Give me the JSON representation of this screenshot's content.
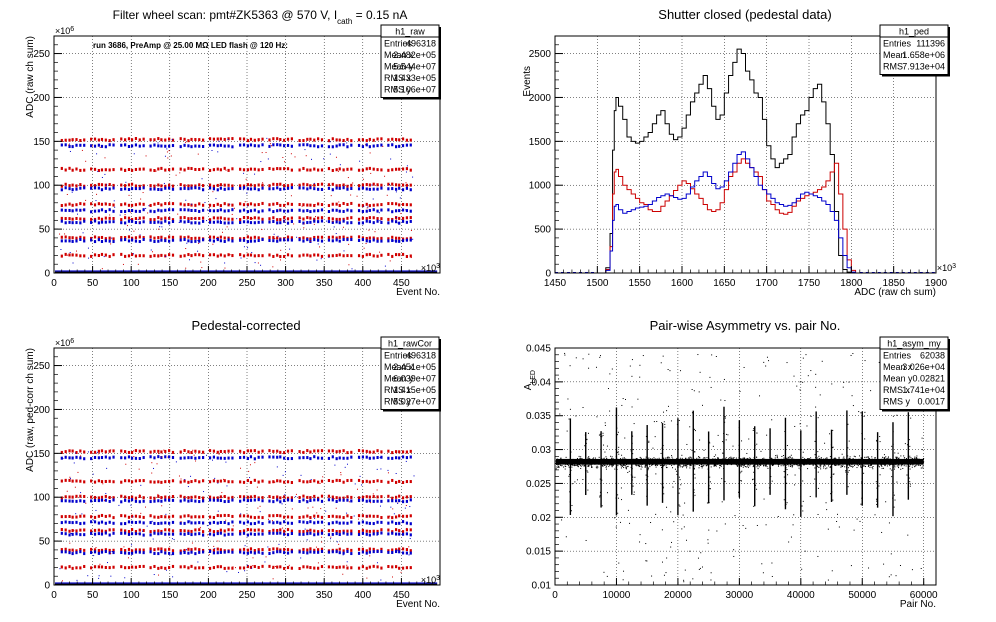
{
  "chart_data": [
    {
      "type": "scatter",
      "title_parts": [
        "Filter wheel scan: pmt#ZK5363 @   570 V, I",
        "cath",
        " = 0.15 nA"
      ],
      "annotation": "run 3686, PreAmp @ 25.00 MΩ LED flash @  120 Hz:",
      "xlabel": "Event No.",
      "ylabel": "ADC (raw ch sum)",
      "x_exponent": "×10",
      "x_exponent_power": "3",
      "y_exponent": "×10",
      "y_exponent_power": "6",
      "xlim": [
        0,
        500
      ],
      "ylim": [
        0,
        270
      ],
      "xticks": [
        0,
        50,
        100,
        150,
        200,
        250,
        300,
        350,
        400,
        450
      ],
      "yticks": [
        0,
        50,
        100,
        150,
        200,
        250
      ],
      "x_data_end": 496.318,
      "cycle_starts": [
        10,
        48,
        87,
        125,
        164,
        202,
        241,
        279,
        318,
        356,
        395,
        433
      ],
      "cycle_dx": [
        0,
        5,
        10,
        14,
        19,
        24,
        29
      ],
      "levels": [
        152,
        145,
        118,
        100,
        96,
        78,
        71,
        62,
        58,
        40,
        37,
        20
      ],
      "level_colors": [
        "#d00000",
        "#0000cc",
        "#d00000",
        "#d00000",
        "#0000cc",
        "#d00000",
        "#0000cc",
        "#d00000",
        "#0000cc",
        "#d00000",
        "#0000cc",
        "#d00000"
      ],
      "grid": true,
      "stats": {
        "name": "h1_raw",
        "rows": [
          [
            "Entries",
            "496318"
          ],
          [
            "Mean x",
            "2.482e+05"
          ],
          [
            "Mean y",
            "5.544e+07"
          ],
          [
            "RMS x",
            "1.433e+05"
          ],
          [
            "RMS y",
            "5.106e+07"
          ]
        ]
      }
    },
    {
      "type": "line",
      "title": "Shutter closed (pedestal data)",
      "xlabel": "ADC (raw ch sum)",
      "ylabel": "Events",
      "x_exponent": "×10",
      "x_exponent_power": "3",
      "xlim": [
        1450,
        1900
      ],
      "ylim": [
        0,
        2700
      ],
      "xticks": [
        1450,
        1500,
        1550,
        1600,
        1650,
        1700,
        1750,
        1800,
        1850,
        1900
      ],
      "yticks": [
        0,
        500,
        1000,
        1500,
        2000,
        2500
      ],
      "grid": true,
      "series": [
        {
          "color": "#000000",
          "x": [
            1500,
            1510,
            1515,
            1518,
            1520,
            1522,
            1525,
            1530,
            1535,
            1540,
            1545,
            1550,
            1555,
            1560,
            1565,
            1570,
            1575,
            1580,
            1585,
            1590,
            1595,
            1600,
            1605,
            1610,
            1615,
            1620,
            1625,
            1630,
            1635,
            1640,
            1645,
            1650,
            1655,
            1660,
            1665,
            1670,
            1675,
            1680,
            1685,
            1690,
            1695,
            1700,
            1705,
            1710,
            1715,
            1720,
            1725,
            1730,
            1735,
            1740,
            1745,
            1750,
            1755,
            1760,
            1765,
            1770,
            1775,
            1780,
            1785,
            1790,
            1795,
            1800,
            1805,
            1810
          ],
          "y": [
            0,
            60,
            450,
            1400,
            1850,
            2000,
            1900,
            1750,
            1550,
            1500,
            1480,
            1500,
            1550,
            1600,
            1700,
            1800,
            1850,
            1700,
            1580,
            1520,
            1550,
            1650,
            1800,
            1950,
            2050,
            2150,
            2250,
            2100,
            1900,
            1750,
            1800,
            2050,
            2250,
            2400,
            2550,
            2500,
            2300,
            2200,
            2050,
            2000,
            1750,
            1450,
            1300,
            1200,
            1250,
            1300,
            1350,
            1550,
            1700,
            1800,
            1850,
            2000,
            2100,
            2150,
            1950,
            1700,
            1350,
            700,
            200,
            40,
            10,
            0,
            0,
            0
          ]
        },
        {
          "color": "#cc0000",
          "x": [
            1500,
            1510,
            1515,
            1518,
            1520,
            1522,
            1525,
            1530,
            1535,
            1540,
            1545,
            1550,
            1555,
            1560,
            1565,
            1570,
            1575,
            1580,
            1585,
            1590,
            1595,
            1600,
            1605,
            1610,
            1615,
            1620,
            1625,
            1630,
            1635,
            1640,
            1645,
            1650,
            1655,
            1660,
            1665,
            1670,
            1675,
            1680,
            1685,
            1690,
            1695,
            1700,
            1705,
            1710,
            1715,
            1720,
            1725,
            1730,
            1735,
            1740,
            1745,
            1750,
            1755,
            1760,
            1765,
            1770,
            1775,
            1780,
            1785,
            1790,
            1795,
            1800,
            1805,
            1810
          ],
          "y": [
            0,
            40,
            300,
            900,
            1150,
            1180,
            1100,
            1000,
            950,
            900,
            850,
            800,
            780,
            720,
            700,
            700,
            760,
            820,
            880,
            940,
            1000,
            1050,
            1020,
            960,
            900,
            850,
            780,
            720,
            700,
            720,
            800,
            950,
            1100,
            1150,
            1250,
            1300,
            1250,
            1200,
            1150,
            1100,
            950,
            820,
            780,
            720,
            680,
            670,
            690,
            760,
            820,
            850,
            880,
            900,
            920,
            950,
            980,
            1050,
            1150,
            1250,
            900,
            500,
            150,
            30,
            0,
            0
          ]
        },
        {
          "color": "#0000cc",
          "x": [
            1500,
            1510,
            1515,
            1518,
            1520,
            1522,
            1525,
            1530,
            1535,
            1540,
            1545,
            1550,
            1555,
            1560,
            1565,
            1570,
            1575,
            1580,
            1585,
            1590,
            1595,
            1600,
            1605,
            1610,
            1615,
            1620,
            1625,
            1630,
            1635,
            1640,
            1645,
            1650,
            1655,
            1660,
            1665,
            1670,
            1675,
            1680,
            1685,
            1690,
            1695,
            1700,
            1705,
            1710,
            1715,
            1720,
            1725,
            1730,
            1735,
            1740,
            1745,
            1750,
            1755,
            1760,
            1765,
            1770,
            1775,
            1780,
            1785,
            1790,
            1795,
            1800,
            1805,
            1810
          ],
          "y": [
            0,
            30,
            250,
            600,
            760,
            780,
            720,
            680,
            700,
            720,
            740,
            750,
            760,
            780,
            820,
            860,
            880,
            900,
            880,
            860,
            840,
            850,
            900,
            980,
            1050,
            1100,
            1150,
            1100,
            1020,
            960,
            980,
            1050,
            1150,
            1250,
            1350,
            1380,
            1300,
            1200,
            1100,
            1000,
            950,
            900,
            850,
            800,
            780,
            760,
            770,
            800,
            850,
            900,
            920,
            900,
            880,
            860,
            820,
            780,
            700,
            600,
            400,
            200,
            60,
            10,
            0,
            0
          ]
        }
      ],
      "stats": {
        "name": "h1_ped",
        "rows": [
          [
            "Entries",
            "111396"
          ],
          [
            "Mean",
            "1.658e+06"
          ],
          [
            "RMS",
            "7.913e+04"
          ]
        ]
      }
    },
    {
      "type": "scatter",
      "title": "Pedestal-corrected",
      "xlabel": "Event No.",
      "ylabel": "ADC (raw, ped-corr ch sum)",
      "x_exponent": "×10",
      "x_exponent_power": "3",
      "y_exponent": "×10",
      "y_exponent_power": "6",
      "xlim": [
        0,
        500
      ],
      "ylim": [
        0,
        270
      ],
      "xticks": [
        0,
        50,
        100,
        150,
        200,
        250,
        300,
        350,
        400,
        450
      ],
      "yticks": [
        0,
        50,
        100,
        150,
        200,
        250
      ],
      "x_data_end": 496.318,
      "cycle_starts": [
        10,
        48,
        87,
        125,
        164,
        202,
        241,
        279,
        318,
        356,
        395,
        433
      ],
      "cycle_dx": [
        0,
        5,
        10,
        14,
        19,
        24,
        29
      ],
      "levels": [
        152,
        145,
        118,
        100,
        96,
        78,
        71,
        62,
        58,
        40,
        37,
        20
      ],
      "level_colors": [
        "#d00000",
        "#0000cc",
        "#d00000",
        "#d00000",
        "#0000cc",
        "#d00000",
        "#0000cc",
        "#d00000",
        "#0000cc",
        "#d00000",
        "#0000cc",
        "#d00000"
      ],
      "grid": true,
      "stats": {
        "name": "h1_rawCor",
        "rows": [
          [
            "Entries",
            "496318"
          ],
          [
            "Mean x",
            "2.451e+05"
          ],
          [
            "Mean y",
            "6.039e+07"
          ],
          [
            "RMS x",
            "1.415e+05"
          ],
          [
            "RMS y",
            "5.027e+07"
          ]
        ]
      }
    },
    {
      "type": "scatter",
      "title": "Pair-wise Asymmetry vs. pair No.",
      "xlabel": "Pair No.",
      "ylabel_main": "A",
      "ylabel_sub": "LED",
      "xlim": [
        0,
        62000
      ],
      "ylim": [
        0.01,
        0.045
      ],
      "xticks": [
        0,
        10000,
        20000,
        30000,
        40000,
        50000,
        60000
      ],
      "yticks": [
        0.01,
        0.015,
        0.02,
        0.025,
        0.03,
        0.035,
        0.04,
        0.045
      ],
      "band_center": 0.0282,
      "band_halfwidth": 0.0007,
      "x_data_end": 60000,
      "spike_x": [
        2500,
        5000,
        7500,
        10000,
        12500,
        15000,
        17500,
        20000,
        22500,
        25000,
        27500,
        30000,
        32500,
        35000,
        37500,
        40000,
        42500,
        45000,
        47500,
        50000,
        52500,
        55000,
        57500
      ],
      "grid": true,
      "stats": {
        "name": "h1_asym_my",
        "rows": [
          [
            "Entries",
            "62038"
          ],
          [
            "Mean x",
            "3.026e+04"
          ],
          [
            "Mean y",
            "0.02821"
          ],
          [
            "RMS x",
            "1.741e+04"
          ],
          [
            "RMS y",
            "0.0017"
          ]
        ]
      }
    }
  ]
}
